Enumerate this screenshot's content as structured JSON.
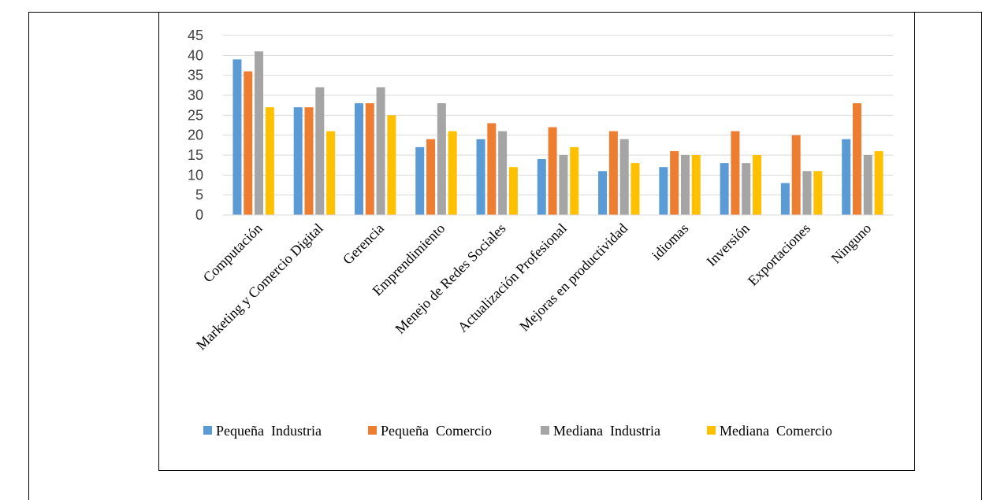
{
  "chart_data": {
    "type": "bar",
    "title": "",
    "xlabel": "",
    "ylabel": "",
    "ylim": [
      0,
      45
    ],
    "yticks": [
      0,
      5,
      10,
      15,
      20,
      25,
      30,
      35,
      40,
      45
    ],
    "grid": true,
    "legend_position": "bottom",
    "categories": [
      "Computación",
      "Marketing y Comercio Digital",
      "Gerencia",
      "Emprendimiento",
      "Menejo de Redes Sociales",
      "Actualización Profesional",
      "Mejoras en productividad",
      "idiomas",
      "Inversión",
      "Exportaciones",
      "Ninguno"
    ],
    "series": [
      {
        "name": "Pequeña  Industria",
        "color": "#5b9bd5",
        "values": [
          39,
          27,
          28,
          17,
          19,
          14,
          11,
          12,
          13,
          8,
          19
        ]
      },
      {
        "name": "Pequeña  Comercio",
        "color": "#ed7d31",
        "values": [
          36,
          27,
          28,
          19,
          23,
          22,
          21,
          16,
          21,
          20,
          28
        ]
      },
      {
        "name": "Mediana  Industria",
        "color": "#a5a5a5",
        "values": [
          41,
          32,
          32,
          28,
          21,
          15,
          19,
          15,
          13,
          11,
          15
        ]
      },
      {
        "name": "Mediana  Comercio",
        "color": "#ffc000",
        "values": [
          27,
          21,
          25,
          21,
          12,
          17,
          13,
          15,
          15,
          11,
          16
        ]
      }
    ]
  }
}
